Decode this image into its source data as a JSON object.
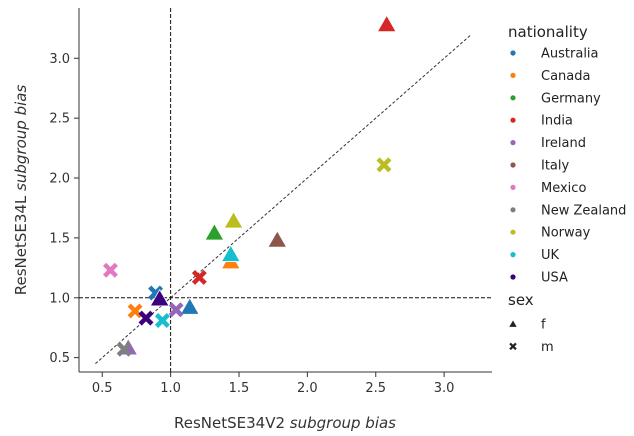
{
  "chart_data": {
    "type": "scatter",
    "xlabel_plain": "ResNetSE34V2",
    "xlabel_italic": "subgroup bias",
    "ylabel_plain": "ResNetSE34L",
    "ylabel_italic": "subgroup bias",
    "xlim": [
      0.33,
      3.35
    ],
    "ylim": [
      0.38,
      3.42
    ],
    "xticks": [
      0.5,
      1.0,
      1.5,
      2.0,
      2.5,
      3.0
    ],
    "xtick_labels": [
      "0.5",
      "1.0",
      "1.5",
      "2.0",
      "2.5",
      "3.0"
    ],
    "yticks": [
      0.5,
      1.0,
      1.5,
      2.0,
      2.5,
      3.0
    ],
    "ytick_labels": [
      "0.5",
      "1.0",
      "1.5",
      "2.0",
      "2.5",
      "3.0"
    ],
    "grid": false,
    "reference_lines": {
      "diagonal": [
        [
          0.45,
          0.45
        ],
        [
          3.2,
          3.2
        ]
      ],
      "vline_x": 1.0,
      "hline_y": 1.0
    },
    "legend_placement": "outside-right",
    "legend": {
      "hue_title": "nationality",
      "hue": [
        {
          "name": "Australia",
          "color": "#1f77b4"
        },
        {
          "name": "Canada",
          "color": "#ff7f0e"
        },
        {
          "name": "Germany",
          "color": "#2ca02c"
        },
        {
          "name": "India",
          "color": "#d62728"
        },
        {
          "name": "Ireland",
          "color": "#9467bd"
        },
        {
          "name": "Italy",
          "color": "#8c564b"
        },
        {
          "name": "Mexico",
          "color": "#e377c2"
        },
        {
          "name": "New Zealand",
          "color": "#7f7f7f"
        },
        {
          "name": "Norway",
          "color": "#bcbd22"
        },
        {
          "name": "UK",
          "color": "#17becf"
        },
        {
          "name": "USA",
          "color": "#3b0080"
        }
      ],
      "style_title": "sex",
      "style": [
        {
          "name": "f",
          "marker": "triangle"
        },
        {
          "name": "m",
          "marker": "x"
        }
      ]
    },
    "points": [
      {
        "nationality": "Australia",
        "sex": "f",
        "x": 1.14,
        "y": 0.92
      },
      {
        "nationality": "Australia",
        "sex": "m",
        "x": 0.89,
        "y": 1.04
      },
      {
        "nationality": "Canada",
        "sex": "f",
        "x": 1.44,
        "y": 1.3
      },
      {
        "nationality": "Canada",
        "sex": "m",
        "x": 0.74,
        "y": 0.89
      },
      {
        "nationality": "Germany",
        "sex": "f",
        "x": 1.32,
        "y": 1.54
      },
      {
        "nationality": "India",
        "sex": "f",
        "x": 2.58,
        "y": 3.28
      },
      {
        "nationality": "India",
        "sex": "m",
        "x": 1.21,
        "y": 1.17
      },
      {
        "nationality": "Ireland",
        "sex": "f",
        "x": 0.69,
        "y": 0.58
      },
      {
        "nationality": "Ireland",
        "sex": "m",
        "x": 1.04,
        "y": 0.9
      },
      {
        "nationality": "Italy",
        "sex": "f",
        "x": 1.78,
        "y": 1.48
      },
      {
        "nationality": "Mexico",
        "sex": "m",
        "x": 0.56,
        "y": 1.23
      },
      {
        "nationality": "New Zealand",
        "sex": "m",
        "x": 0.66,
        "y": 0.57
      },
      {
        "nationality": "Norway",
        "sex": "f",
        "x": 1.46,
        "y": 1.64
      },
      {
        "nationality": "Norway",
        "sex": "m",
        "x": 2.56,
        "y": 2.11
      },
      {
        "nationality": "UK",
        "sex": "f",
        "x": 1.44,
        "y": 1.36
      },
      {
        "nationality": "UK",
        "sex": "m",
        "x": 0.94,
        "y": 0.81
      },
      {
        "nationality": "USA",
        "sex": "f",
        "x": 0.92,
        "y": 0.99
      },
      {
        "nationality": "USA",
        "sex": "m",
        "x": 0.82,
        "y": 0.83
      }
    ]
  }
}
